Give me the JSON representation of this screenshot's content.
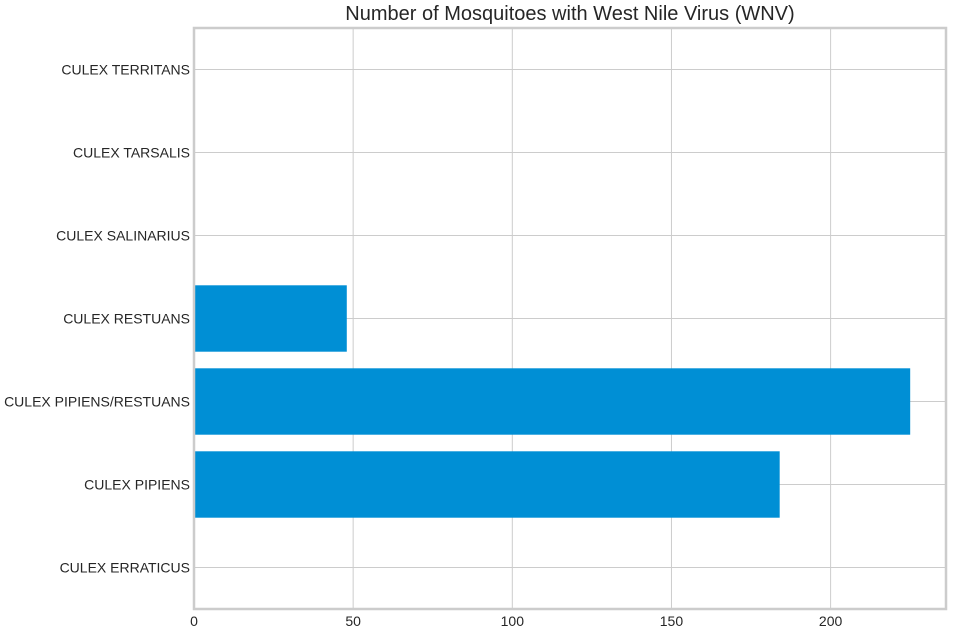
{
  "chart_data": {
    "type": "bar",
    "orientation": "horizontal",
    "title": "Number of Mosquitoes with West Nile Virus (WNV)",
    "xlabel": "",
    "ylabel": "",
    "categories": [
      "CULEX ERRATICUS",
      "CULEX PIPIENS",
      "CULEX PIPIENS/RESTUANS",
      "CULEX RESTUANS",
      "CULEX SALINARIUS",
      "CULEX TARSALIS",
      "CULEX TERRITANS"
    ],
    "values": [
      0,
      184,
      225,
      48,
      0,
      0,
      0
    ],
    "xlim": [
      0,
      236.25
    ],
    "xticks": [
      0,
      50,
      100,
      150,
      200
    ],
    "xtick_labels": [
      "0",
      "50",
      "100",
      "150",
      "200"
    ],
    "grid": true,
    "legend": "none",
    "colors": {
      "bar": "#008fd5",
      "grid": "#cccccc",
      "frame": "#cccccc",
      "text": "#262626"
    }
  }
}
